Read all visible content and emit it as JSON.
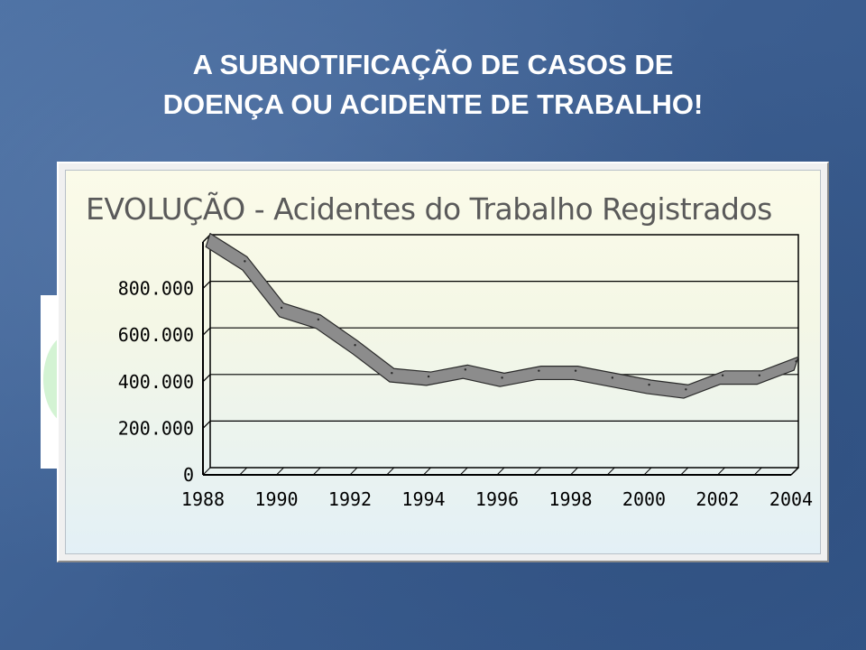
{
  "slide": {
    "title_line1": "A SUBNOTIFICAÇÃO DE CASOS DE",
    "title_line2": "DOENÇA OU ACIDENTE DE TRABALHO!"
  },
  "chart_data": {
    "type": "line",
    "title": "EVOLUÇÃO - Acidentes do Trabalho Registrados",
    "xlabel": "",
    "ylabel": "",
    "x": [
      1988,
      1989,
      1990,
      1991,
      1992,
      1993,
      1994,
      1995,
      1996,
      1997,
      1998,
      1999,
      2000,
      2001,
      2002,
      2003,
      2004
    ],
    "values": [
      990000,
      890000,
      690000,
      640000,
      530000,
      410000,
      395000,
      425000,
      390000,
      420000,
      420000,
      390000,
      360000,
      340000,
      400000,
      400000,
      460000
    ],
    "x_tick_labels": [
      "1988",
      "1990",
      "1992",
      "1994",
      "1996",
      "1998",
      "2000",
      "2002",
      "2004"
    ],
    "y_tick_labels": [
      "0",
      "200.000",
      "400.000",
      "600.000",
      "800.000"
    ],
    "y_ticks": [
      0,
      200000,
      400000,
      600000,
      800000
    ],
    "ylim": [
      0,
      1000000
    ],
    "xlim": [
      1988,
      2004
    ],
    "grid": true,
    "line_style": "3d-ribbon",
    "colors": {
      "line": "#8c8c8c",
      "line_edge": "#2a2a2a",
      "grid": "#000000"
    }
  }
}
